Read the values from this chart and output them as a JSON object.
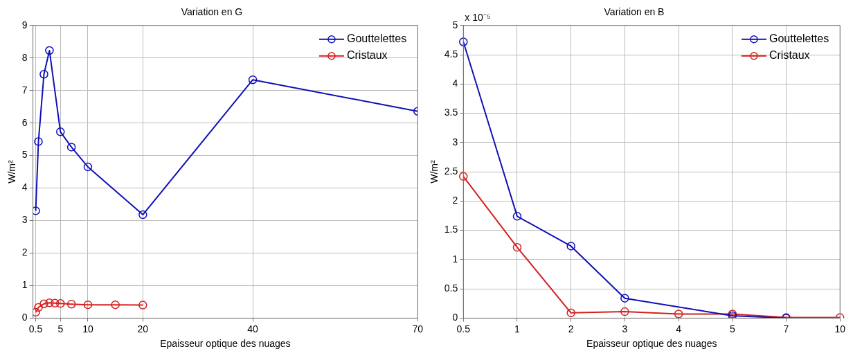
{
  "chart_data": [
    {
      "type": "line",
      "title": "Variation en G",
      "xlabel": "Epaisseur optique des nuages",
      "ylabel": "W/m²",
      "xlim": [
        0,
        70
      ],
      "xticks": [
        0.5,
        5,
        10,
        20,
        40,
        70
      ],
      "ylim": [
        0,
        9
      ],
      "yticks": [
        0,
        1,
        2,
        3,
        4,
        5,
        6,
        7,
        8,
        9
      ],
      "grid": true,
      "legend": "top right",
      "marker": "circle",
      "series": [
        {
          "name": "Gouttelettes",
          "color": "#1010b8",
          "x": [
            0.5,
            1,
            2,
            3,
            5,
            7,
            10,
            20,
            40,
            70
          ],
          "values": [
            3.3,
            5.43,
            7.5,
            8.23,
            5.73,
            5.26,
            4.65,
            3.18,
            7.33,
            6.36
          ]
        },
        {
          "name": "Cristaux",
          "color": "#d42020",
          "x": [
            0.5,
            1,
            2,
            3,
            4,
            5,
            7,
            10,
            15,
            20
          ],
          "values": [
            0.18,
            0.33,
            0.44,
            0.47,
            0.46,
            0.45,
            0.43,
            0.41,
            0.41,
            0.4
          ]
        }
      ]
    },
    {
      "type": "line",
      "title": "Variation en B",
      "xlabel": "Epaisseur optique des nuages",
      "ylabel": "W/m²",
      "annotations": [
        "x 10⁻⁵"
      ],
      "categories": [
        "0.5",
        "1",
        "2",
        "3",
        "4",
        "5",
        "7",
        "10"
      ],
      "ylim": [
        0,
        5
      ],
      "yticks": [
        0,
        0.5,
        1,
        1.5,
        2,
        2.5,
        3,
        3.5,
        4,
        4.5,
        5
      ],
      "grid": true,
      "legend": "top right",
      "marker": "circle",
      "series": [
        {
          "name": "Gouttelettes",
          "color": "#1010b8",
          "values": [
            4.72,
            1.74,
            1.23,
            0.34,
            null,
            0.04,
            0,
            null
          ]
        },
        {
          "name": "Cristaux",
          "color": "#d42020",
          "values": [
            2.42,
            1.21,
            0.09,
            0.11,
            0.07,
            0.07,
            0.01,
            0.01
          ]
        }
      ]
    }
  ]
}
